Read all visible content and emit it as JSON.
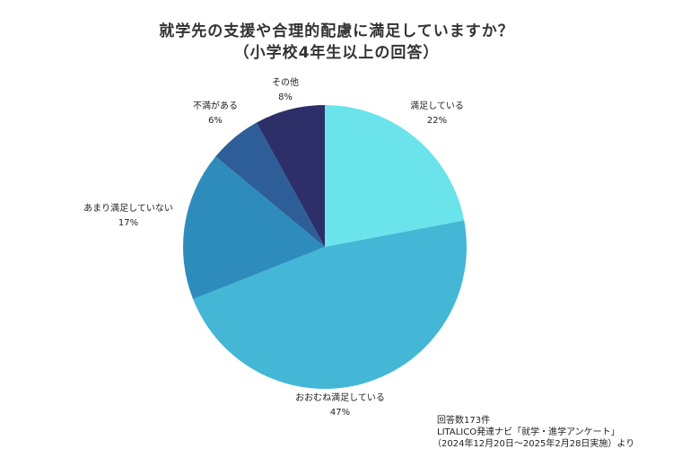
{
  "chart_data": {
    "type": "pie",
    "title": "就学先の支援や合理的配慮に満足していますか？",
    "subtitle": "（小学校4年生以上の回答）",
    "start_angle_deg": 0,
    "direction": "clockwise",
    "slices": [
      {
        "label": "満足している",
        "value": 22,
        "value_label": "22%",
        "color": "#6ae3ea"
      },
      {
        "label": "おおむね満足している",
        "value": 47,
        "value_label": "47%",
        "color": "#44b6d6"
      },
      {
        "label": "あまり満足していない",
        "value": 17,
        "value_label": "17%",
        "color": "#2e8cbd"
      },
      {
        "label": "不満がある",
        "value": 6,
        "value_label": "6%",
        "color": "#2d5e98"
      },
      {
        "label": "その他",
        "value": 8,
        "value_label": "8%",
        "color": "#2d3068"
      }
    ]
  },
  "notes": {
    "count": "回答数173件",
    "source": "LITALICO発達ナビ「就学・進学アンケート」",
    "period": "（2024年12月20日～2025年2月28日実施）より"
  }
}
